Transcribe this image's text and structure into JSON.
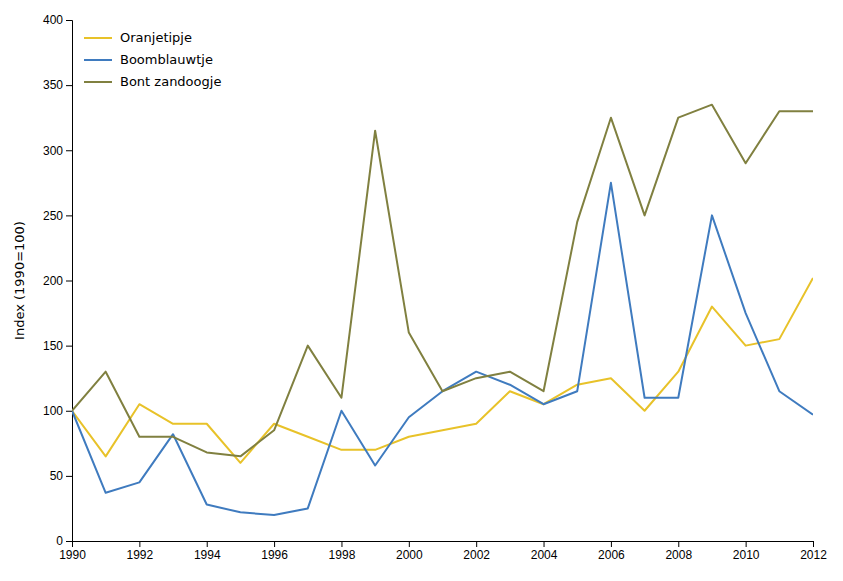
{
  "chart_data": {
    "type": "line",
    "y_label": "Index (1990=100)",
    "x": [
      1990,
      1991,
      1992,
      1993,
      1994,
      1995,
      1996,
      1997,
      1998,
      1999,
      2000,
      2001,
      2002,
      2003,
      2004,
      2005,
      2006,
      2007,
      2008,
      2009,
      2010,
      2011,
      2012
    ],
    "series": [
      {
        "name": "Oranjetipje",
        "color": "#e8c229",
        "values": [
          100,
          65,
          105,
          90,
          90,
          60,
          90,
          80,
          70,
          70,
          80,
          85,
          90,
          115,
          105,
          120,
          125,
          100,
          130,
          180,
          150,
          155,
          202
        ]
      },
      {
        "name": "Boomblauwtje",
        "color": "#3f7bbf",
        "values": [
          100,
          37,
          45,
          82,
          28,
          22,
          20,
          25,
          100,
          58,
          95,
          115,
          130,
          120,
          105,
          115,
          275,
          110,
          110,
          250,
          175,
          115,
          97
        ]
      },
      {
        "name": "Bont zandoogje",
        "color": "#808040",
        "values": [
          100,
          130,
          80,
          80,
          68,
          65,
          85,
          150,
          110,
          315,
          160,
          115,
          125,
          130,
          115,
          245,
          325,
          250,
          325,
          335,
          290,
          330,
          330
        ]
      }
    ],
    "xlim": [
      1990,
      2012
    ],
    "ylim": [
      0,
      400
    ],
    "xticks": [
      1990,
      1992,
      1994,
      1996,
      1998,
      2000,
      2002,
      2004,
      2006,
      2008,
      2010,
      2012
    ],
    "yticks": [
      0,
      50,
      100,
      150,
      200,
      250,
      300,
      350,
      400
    ],
    "grid": false,
    "legend": "upper left"
  }
}
